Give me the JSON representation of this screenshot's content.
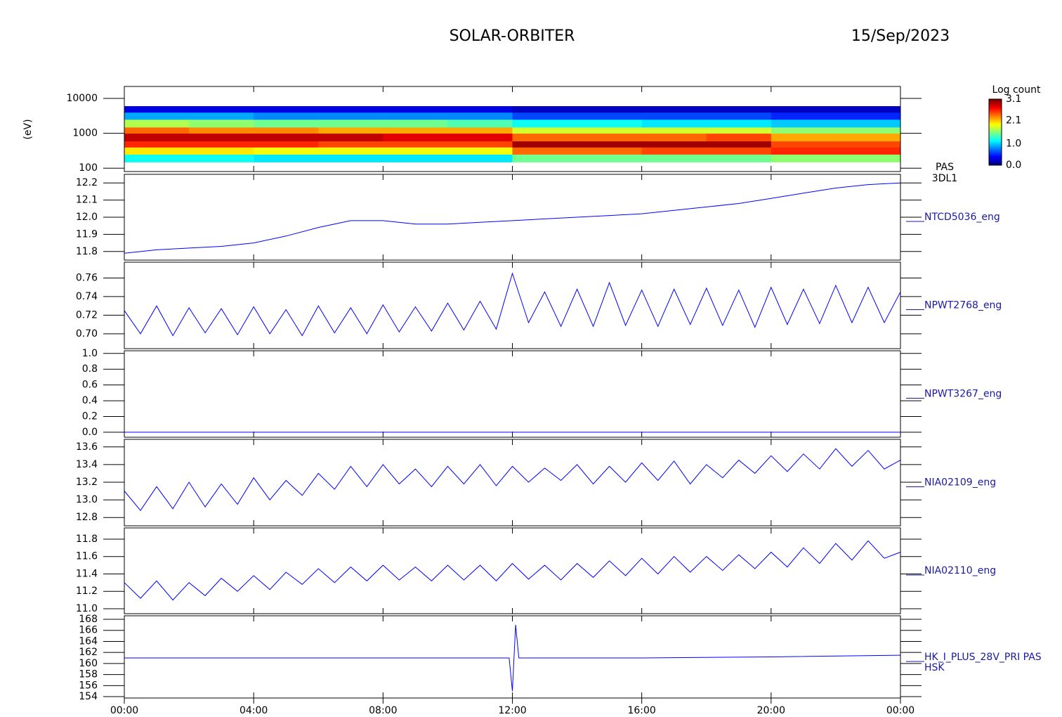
{
  "header": {
    "title": "SOLAR-ORBITER",
    "date": "15/Sep/2023"
  },
  "chart_data": [
    {
      "type": "heatmap",
      "y_label": "(eV)",
      "labels": [
        "PAS",
        "3DL1"
      ],
      "log_y": true,
      "xlim": [
        0,
        24
      ],
      "ylim": [
        80,
        22000
      ],
      "yticks": [
        100,
        1000,
        10000
      ],
      "time_bins": [
        0,
        2,
        4,
        6,
        8,
        10,
        12,
        14,
        16,
        18,
        20,
        22,
        24
      ],
      "energy_bins": [
        150,
        250,
        400,
        600,
        1000,
        1500,
        2500,
        4000,
        6000
      ],
      "values": [
        [
          1.2,
          2.0,
          2.6,
          2.9,
          2.4,
          1.7,
          0.9,
          0.3
        ],
        [
          1.2,
          2.0,
          2.6,
          2.9,
          2.3,
          1.6,
          0.9,
          0.3
        ],
        [
          1.1,
          1.9,
          2.6,
          2.9,
          2.3,
          1.5,
          0.8,
          0.3
        ],
        [
          1.1,
          1.9,
          2.5,
          2.9,
          2.2,
          1.5,
          0.8,
          0.3
        ],
        [
          1.1,
          1.9,
          2.5,
          2.8,
          2.2,
          1.5,
          0.8,
          0.3
        ],
        [
          1.1,
          1.9,
          2.5,
          2.8,
          2.2,
          1.4,
          0.8,
          0.3
        ],
        [
          1.5,
          2.4,
          3.0,
          2.4,
          1.8,
          1.2,
          0.6,
          0.2
        ],
        [
          1.5,
          2.4,
          3.0,
          2.4,
          1.8,
          1.2,
          0.6,
          0.2
        ],
        [
          1.5,
          2.5,
          3.0,
          2.4,
          1.8,
          1.1,
          0.6,
          0.2
        ],
        [
          1.5,
          2.5,
          3.0,
          2.5,
          1.8,
          1.1,
          0.6,
          0.2
        ],
        [
          1.6,
          2.6,
          2.5,
          2.2,
          1.6,
          1.0,
          0.5,
          0.2
        ],
        [
          1.6,
          2.6,
          2.5,
          2.2,
          1.6,
          1.0,
          0.5,
          0.2
        ]
      ],
      "colorbar_label": "Log count",
      "clim": [
        0,
        3.1
      ],
      "cticks": [
        {
          "value": 0,
          "label": "0.0"
        },
        {
          "value": 1,
          "label": "1.0"
        },
        2.1,
        3.1
      ]
    },
    {
      "type": "line",
      "labels": [
        "NTCD5036_eng"
      ],
      "color": "#0000ff",
      "xlim": [
        0,
        24
      ],
      "ylim": [
        11.75,
        12.25
      ],
      "yticks": [
        11.8,
        11.9,
        {
          "value": 12,
          "label": "12.0"
        },
        12.1,
        12.2
      ],
      "x": [
        0,
        1,
        2,
        3,
        4,
        5,
        6,
        7,
        8,
        9,
        10,
        11,
        12,
        13,
        14,
        15,
        16,
        17,
        18,
        19,
        20,
        21,
        22,
        23,
        24
      ],
      "values": [
        11.79,
        11.81,
        11.82,
        11.83,
        11.85,
        11.89,
        11.94,
        11.98,
        11.98,
        11.96,
        11.96,
        11.97,
        11.98,
        11.99,
        12.0,
        12.01,
        12.02,
        12.04,
        12.06,
        12.08,
        12.11,
        12.14,
        12.17,
        12.19,
        12.2
      ]
    },
    {
      "type": "line",
      "labels": [
        "NPWT2768_eng"
      ],
      "color": "#0000ff",
      "xlim": [
        0,
        24
      ],
      "ylim": [
        0.684,
        0.777
      ],
      "yticks": [
        {
          "value": 0.7,
          "label": "0.70"
        },
        0.72,
        0.74,
        0.76
      ],
      "x": [
        0,
        0.5,
        1,
        1.5,
        2,
        2.5,
        3,
        3.5,
        4,
        4.5,
        5,
        5.5,
        6,
        6.5,
        7,
        7.5,
        8,
        8.5,
        9,
        9.5,
        10,
        10.5,
        11,
        11.5,
        12,
        12.5,
        13,
        13.5,
        14,
        14.5,
        15,
        15.5,
        16,
        16.5,
        17,
        17.5,
        18,
        18.5,
        19,
        19.5,
        20,
        20.5,
        21,
        21.5,
        22,
        22.5,
        23,
        23.5,
        24
      ],
      "values": [
        0.725,
        0.7,
        0.73,
        0.698,
        0.728,
        0.701,
        0.727,
        0.699,
        0.729,
        0.7,
        0.726,
        0.698,
        0.73,
        0.701,
        0.728,
        0.7,
        0.731,
        0.702,
        0.729,
        0.703,
        0.733,
        0.704,
        0.735,
        0.705,
        0.765,
        0.712,
        0.745,
        0.708,
        0.748,
        0.708,
        0.755,
        0.709,
        0.747,
        0.708,
        0.748,
        0.71,
        0.749,
        0.709,
        0.747,
        0.707,
        0.75,
        0.71,
        0.748,
        0.711,
        0.752,
        0.712,
        0.75,
        0.712,
        0.745
      ]
    },
    {
      "type": "line",
      "labels": [
        "NPWT3267_eng"
      ],
      "color": "#0000ff",
      "xlim": [
        0,
        24
      ],
      "ylim": [
        -0.063,
        1.034
      ],
      "yticks": [
        {
          "value": 0,
          "label": "0.0"
        },
        0.2,
        0.4,
        0.6,
        0.8,
        {
          "value": 1,
          "label": "1.0"
        }
      ],
      "x": [
        0,
        24
      ],
      "values": [
        0,
        0
      ]
    },
    {
      "type": "line",
      "labels": [
        "NIA02109_eng"
      ],
      "color": "#0000ff",
      "xlim": [
        0,
        24
      ],
      "ylim": [
        12.706,
        13.686
      ],
      "yticks": [
        12.8,
        {
          "value": 13,
          "label": "13.0"
        },
        13.2,
        13.4,
        13.6
      ],
      "x": [
        0,
        0.5,
        1,
        1.5,
        2,
        2.5,
        3,
        3.5,
        4,
        4.5,
        5,
        5.5,
        6,
        6.5,
        7,
        7.5,
        8,
        8.5,
        9,
        9.5,
        10,
        10.5,
        11,
        11.5,
        12,
        12.5,
        13,
        13.5,
        14,
        14.5,
        15,
        15.5,
        16,
        16.5,
        17,
        17.5,
        18,
        18.5,
        19,
        19.5,
        20,
        20.5,
        21,
        21.5,
        22,
        22.5,
        23,
        23.5,
        24
      ],
      "values": [
        13.1,
        12.88,
        13.15,
        12.9,
        13.2,
        12.92,
        13.18,
        12.95,
        13.25,
        13.0,
        13.22,
        13.05,
        13.3,
        13.12,
        13.38,
        13.15,
        13.4,
        13.18,
        13.35,
        13.15,
        13.38,
        13.18,
        13.4,
        13.16,
        13.38,
        13.2,
        13.36,
        13.22,
        13.4,
        13.18,
        13.38,
        13.2,
        13.42,
        13.22,
        13.44,
        13.18,
        13.4,
        13.25,
        13.45,
        13.3,
        13.5,
        13.32,
        13.52,
        13.35,
        13.58,
        13.38,
        13.56,
        13.35,
        13.45
      ]
    },
    {
      "type": "line",
      "labels": [
        "NIA02110_eng"
      ],
      "color": "#0000ff",
      "xlim": [
        0,
        24
      ],
      "ylim": [
        10.943,
        11.929
      ],
      "yticks": [
        {
          "value": 11,
          "label": "11.0"
        },
        11.2,
        11.4,
        11.6,
        11.8
      ],
      "x": [
        0,
        0.5,
        1,
        1.5,
        2,
        2.5,
        3,
        3.5,
        4,
        4.5,
        5,
        5.5,
        6,
        6.5,
        7,
        7.5,
        8,
        8.5,
        9,
        9.5,
        10,
        10.5,
        11,
        11.5,
        12,
        12.5,
        13,
        13.5,
        14,
        14.5,
        15,
        15.5,
        16,
        16.5,
        17,
        17.5,
        18,
        18.5,
        19,
        19.5,
        20,
        20.5,
        21,
        21.5,
        22,
        22.5,
        23,
        23.5,
        24
      ],
      "values": [
        11.3,
        11.12,
        11.32,
        11.1,
        11.3,
        11.15,
        11.35,
        11.2,
        11.38,
        11.22,
        11.42,
        11.28,
        11.46,
        11.3,
        11.48,
        11.32,
        11.5,
        11.33,
        11.48,
        11.32,
        11.5,
        11.33,
        11.5,
        11.32,
        11.52,
        11.34,
        11.5,
        11.33,
        11.52,
        11.36,
        11.55,
        11.38,
        11.58,
        11.4,
        11.6,
        11.42,
        11.6,
        11.44,
        11.62,
        11.46,
        11.65,
        11.48,
        11.7,
        11.52,
        11.75,
        11.56,
        11.78,
        11.58,
        11.65
      ]
    },
    {
      "type": "line",
      "labels": [
        "HK_I_PLUS_28V_PRI PAS",
        "HSK"
      ],
      "color": "#0000ff",
      "xlim": [
        0,
        24
      ],
      "ylim": [
        153.75,
        168.64
      ],
      "yticks": [
        154,
        156,
        158,
        160,
        162,
        164,
        166,
        168
      ],
      "xticks": [
        {
          "value": 0,
          "label": "00:00"
        },
        {
          "value": 4,
          "label": "04:00"
        },
        {
          "value": 8,
          "label": "08:00"
        },
        {
          "value": 12,
          "label": "12:00"
        },
        {
          "value": 16,
          "label": "16:00"
        },
        {
          "value": 20,
          "label": "20:00"
        },
        {
          "value": 24,
          "label": "00:00"
        }
      ],
      "x": [
        0,
        4,
        8,
        11.9,
        12.0,
        12.1,
        12.2,
        16,
        20,
        24
      ],
      "values": [
        161,
        161,
        161,
        161,
        155,
        167,
        161,
        161,
        161.2,
        161.5
      ]
    }
  ]
}
